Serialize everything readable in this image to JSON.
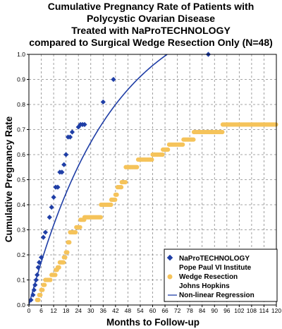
{
  "chart_data": {
    "type": "scatter",
    "title": [
      "Cumulative Pregnancy Rate of Patients with",
      "Polycystic Ovarian Disease",
      "Treated with NaProTECHNOLOGY",
      "compared to Surgical Wedge Resection Only (N=48)"
    ],
    "xlabel": "Months to Follow-up",
    "ylabel": "Cumulative Pregnancy Rate",
    "xlim": [
      0,
      120
    ],
    "ylim": [
      0,
      1.0
    ],
    "xticks": [
      "0",
      "6",
      "12",
      "18",
      "24",
      "30",
      "36",
      "42",
      "48",
      "54",
      "60",
      "66",
      "72",
      "78",
      "84",
      "90",
      "96",
      "102",
      "108",
      "114",
      "120"
    ],
    "yticks": [
      "0.0",
      "0.1",
      "0.2",
      "0.3",
      "0.4",
      "0.5",
      "0.6",
      "0.7",
      "0.8",
      "0.9",
      "1.0"
    ],
    "grid": true,
    "legend_position": "bottom-right",
    "legend": [
      {
        "bold": "NaPro",
        "rest": "TECHNOLOGY"
      },
      {
        "bold": "",
        "rest": "Pope Paul VI Institute"
      },
      {
        "bold": "",
        "rest": "Wedge Resection"
      },
      {
        "bold": "",
        "rest": "Johns Hopkins"
      },
      {
        "bold": "",
        "rest": "Non-linear Regression"
      }
    ],
    "series": [
      {
        "marker": "diamond",
        "color": "#1f3ea6",
        "points": [
          [
            1,
            0.02
          ],
          [
            2,
            0.04
          ],
          [
            2.5,
            0.06
          ],
          [
            3,
            0.08
          ],
          [
            3.5,
            0.1
          ],
          [
            4,
            0.12
          ],
          [
            4.5,
            0.15
          ],
          [
            5,
            0.17
          ],
          [
            6,
            0.19
          ],
          [
            7,
            0.27
          ],
          [
            8,
            0.29
          ],
          [
            10,
            0.35
          ],
          [
            11,
            0.39
          ],
          [
            12,
            0.43
          ],
          [
            13,
            0.47
          ],
          [
            14,
            0.47
          ],
          [
            15,
            0.53
          ],
          [
            16,
            0.53
          ],
          [
            17,
            0.56
          ],
          [
            18,
            0.6
          ],
          [
            19,
            0.67
          ],
          [
            20,
            0.67
          ],
          [
            21,
            0.69
          ],
          [
            24,
            0.71
          ],
          [
            25,
            0.72
          ],
          [
            26,
            0.72
          ],
          [
            27,
            0.72
          ],
          [
            36,
            0.81
          ],
          [
            41,
            0.9
          ],
          [
            87,
            1.0
          ]
        ]
      },
      {
        "marker": "circle",
        "color": "#f5c35a",
        "steps": [
          [
            4,
            0.02
          ],
          [
            5,
            0.04
          ],
          [
            6,
            0.06
          ],
          [
            7,
            0.08
          ],
          [
            8,
            0.1
          ],
          [
            11,
            0.12
          ],
          [
            13,
            0.14
          ],
          [
            14,
            0.15
          ],
          [
            15,
            0.17
          ],
          [
            17,
            0.19
          ],
          [
            18,
            0.21
          ],
          [
            19,
            0.25
          ],
          [
            20,
            0.29
          ],
          [
            22,
            0.29
          ],
          [
            23,
            0.31
          ],
          [
            25,
            0.34
          ],
          [
            27,
            0.35
          ],
          [
            35,
            0.4
          ],
          [
            40,
            0.42
          ],
          [
            42,
            0.44
          ],
          [
            43,
            0.47
          ],
          [
            45,
            0.49
          ],
          [
            47,
            0.55
          ],
          [
            53,
            0.58
          ],
          [
            60,
            0.6
          ],
          [
            65,
            0.62
          ],
          [
            68,
            0.64
          ],
          [
            75,
            0.66
          ],
          [
            80,
            0.69
          ],
          [
            94,
            0.72
          ],
          [
            120,
            0.72
          ]
        ]
      }
    ],
    "regression": {
      "color": "#1f3ea6",
      "asymptote": 1.23,
      "rate": 0.025
    }
  }
}
